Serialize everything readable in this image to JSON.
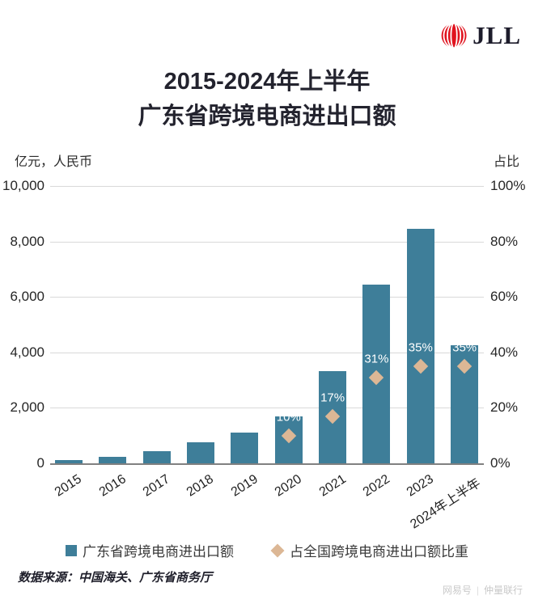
{
  "logo": {
    "brand": "JLL",
    "mark": "jll-globe",
    "red": "#e0131e",
    "dark": "#1d1c2b"
  },
  "title": {
    "line1": "2015-2024年上半年",
    "line2": "广东省跨境电商进出口额"
  },
  "axes": {
    "left_header": "亿元，人民币",
    "right_header": "占比",
    "left_ticks": [
      "10,000",
      "8,000",
      "6,000",
      "4,000",
      "2,000",
      "0"
    ],
    "right_ticks": [
      "100%",
      "80%",
      "60%",
      "40%",
      "20%",
      "0%"
    ]
  },
  "chart_data": {
    "type": "bar",
    "categories": [
      "2015",
      "2016",
      "2017",
      "2018",
      "2019",
      "2020",
      "2021",
      "2022",
      "2023",
      "2024年上半年"
    ],
    "series": [
      {
        "name": "广东省跨境电商进出口额",
        "type": "bar",
        "unit": "亿元",
        "values": [
          120,
          230,
          430,
          760,
          1110,
          1700,
          3310,
          6450,
          8450,
          4270
        ]
      },
      {
        "name": "占全国跨境电商进出口额比重",
        "type": "scatter-diamond",
        "unit": "%",
        "values": [
          null,
          null,
          null,
          null,
          null,
          10,
          17,
          31,
          35,
          35
        ],
        "labels": [
          null,
          null,
          null,
          null,
          null,
          "10%",
          "17%",
          "31%",
          "35%",
          "35%"
        ]
      }
    ],
    "title": "2015-2024年上半年 广东省跨境电商进出口额",
    "ylabel_left": "亿元，人民币",
    "ylabel_right": "占比",
    "ylim_left": [
      0,
      10000
    ],
    "ylim_right": [
      0,
      100
    ],
    "grid": true,
    "legend_position": "bottom",
    "bar_color": "#3e7e99",
    "marker_color": "#dcb795"
  },
  "legend": {
    "bar_label": "广东省跨境电商进出口额",
    "diamond_label": "占全国跨境电商进出口额比重"
  },
  "footer": {
    "source": "数据来源：中国海关、广东省商务厅",
    "watermark_left": "网易号",
    "watermark_right": "仲量联行"
  }
}
